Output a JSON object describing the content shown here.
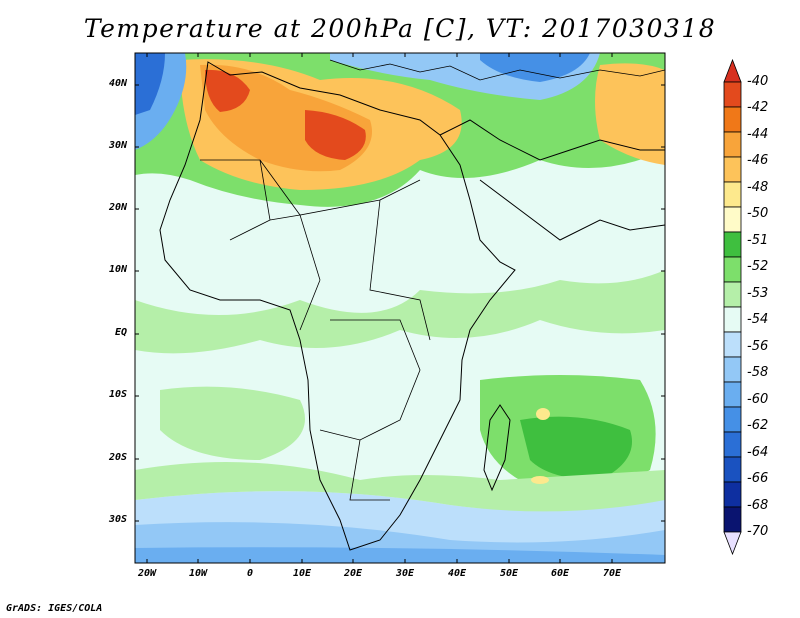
{
  "title": "Temperature at 200hPa [C], VT: 2017030318",
  "credit": "GrADS: IGES/COLA",
  "map": {
    "lat_labels": [
      "40N",
      "30N",
      "20N",
      "10N",
      "EQ",
      "10S",
      "20S",
      "30S"
    ],
    "lon_labels": [
      "20W",
      "10W",
      "0",
      "10E",
      "20E",
      "30E",
      "40E",
      "50E",
      "60E",
      "70E"
    ]
  },
  "legend": {
    "levels": [
      {
        "label": "-40",
        "color": "#d7301f"
      },
      {
        "label": "-42",
        "color": "#e34a1d"
      },
      {
        "label": "-44",
        "color": "#f07818"
      },
      {
        "label": "-46",
        "color": "#f8a43a"
      },
      {
        "label": "-48",
        "color": "#fdc35a"
      },
      {
        "label": "-50",
        "color": "#fde98d"
      },
      {
        "label": "-51",
        "color": "#fffbc8"
      },
      {
        "label": "-52",
        "color": "#3fbf3f"
      },
      {
        "label": "-53",
        "color": "#7ddf6b"
      },
      {
        "label": "-54",
        "color": "#b5efa9"
      },
      {
        "label": "",
        "color": "#e6fbf4"
      },
      {
        "label": "-56",
        "color": "#bcdffb"
      },
      {
        "label": "-58",
        "color": "#93c8f6"
      },
      {
        "label": "-60",
        "color": "#6aaef0"
      },
      {
        "label": "-62",
        "color": "#4590e6"
      },
      {
        "label": "-64",
        "color": "#2b6fd6"
      },
      {
        "label": "-66",
        "color": "#1a52c0"
      },
      {
        "label": "-68",
        "color": "#0e2fa0"
      },
      {
        "label": "-70",
        "color": "#0a1470"
      },
      {
        "label": "",
        "color": "#e8e0ff"
      }
    ]
  }
}
